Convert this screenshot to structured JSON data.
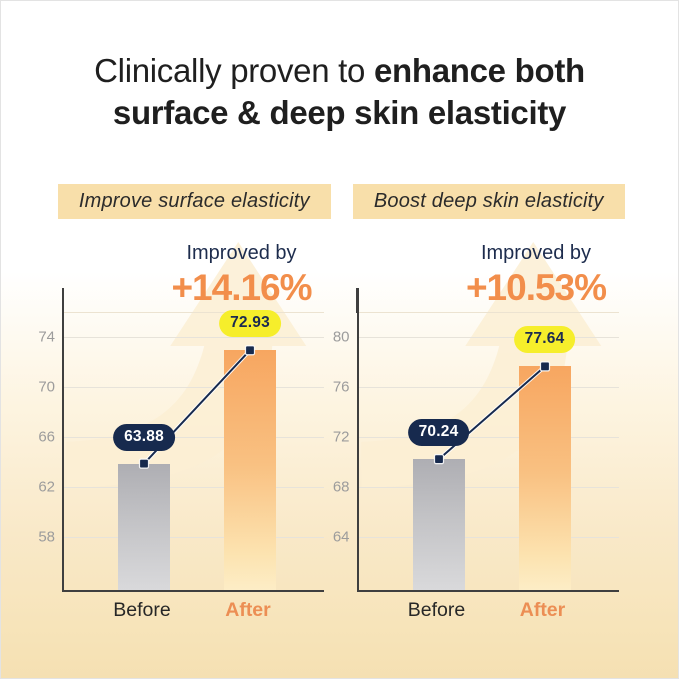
{
  "title": {
    "line1_regular": "Clinically proven to ",
    "line1_bold": "enhance both",
    "line2_bold": "surface & deep skin elasticity"
  },
  "colors": {
    "accent_orange": "#f28e4b",
    "navy": "#172a4e",
    "pill_yellow": "#f6ee2b",
    "header_bg": "#f8dfaa",
    "after_label_orange": "#ec8e54",
    "bar_gray_top": "#aeaeb3",
    "bar_orange_top": "#f7a660",
    "page_cream_bottom": "#f5e0b2"
  },
  "chart_data": [
    {
      "type": "bar",
      "title": "Improve surface elasticity",
      "subtitle": "Improved by",
      "improvement": "+14.16%",
      "categories": [
        "Before",
        "After"
      ],
      "values": [
        63.88,
        72.93
      ],
      "value_labels": [
        "63.88",
        "72.93"
      ],
      "yticks": [
        58,
        62,
        66,
        70,
        74
      ],
      "ylim": [
        53.8,
        75.9
      ],
      "grid": true,
      "legend": false
    },
    {
      "type": "bar",
      "title": "Boost deep skin elasticity",
      "subtitle": "Improved by",
      "improvement": "+10.53%",
      "categories": [
        "Before",
        "After"
      ],
      "values": [
        70.24,
        77.64
      ],
      "value_labels": [
        "70.24",
        "77.64"
      ],
      "yticks": [
        64,
        68,
        72,
        76,
        80
      ],
      "ylim": [
        59.8,
        81.9
      ],
      "grid": true,
      "legend": false
    }
  ]
}
